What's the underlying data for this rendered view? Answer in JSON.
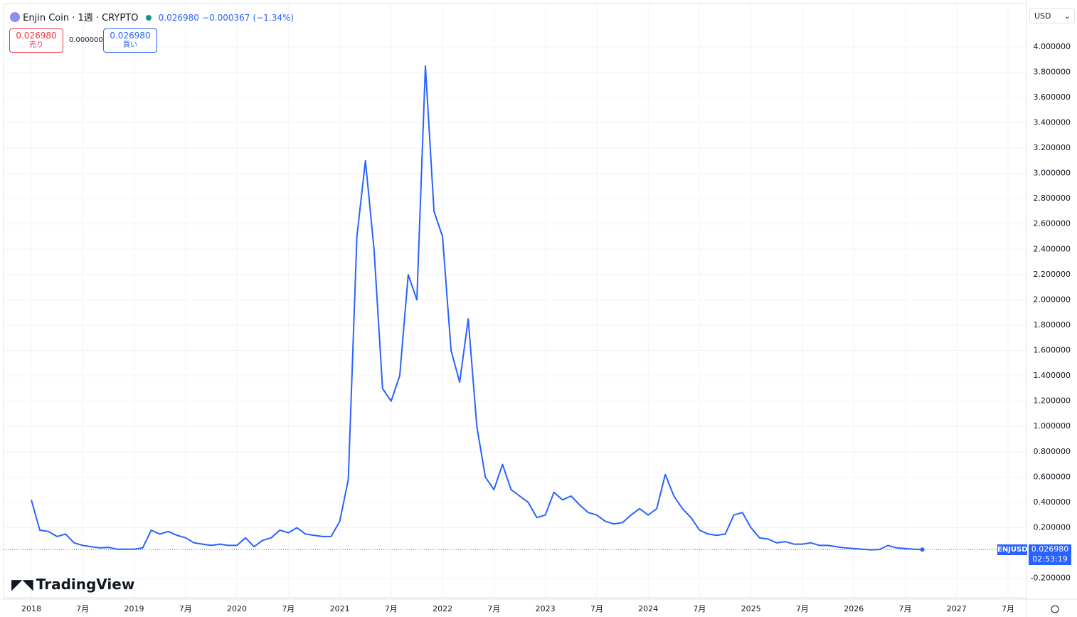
{
  "header": {
    "symbol": "Enjin Coin · 1週 · CRYPTO",
    "last": "0.026980",
    "change": "−0.000367",
    "change_pct": "(−1.34%)",
    "sell_price": "0.026980",
    "sell_label": "売り",
    "spread": "0.000000",
    "buy_price": "0.026980",
    "buy_label": "買い",
    "currency": "USD",
    "brand": "TradingView"
  },
  "price_tag": {
    "symbol": "ENJUSD",
    "price": "0.026980",
    "countdown": "02:53:19"
  },
  "chart_data": {
    "type": "line",
    "grid": true,
    "x": [
      "2018-01",
      "2018-02",
      "2018-03",
      "2018-04",
      "2018-05",
      "2018-06",
      "2018-07",
      "2018-08",
      "2018-09",
      "2018-10",
      "2018-11",
      "2018-12",
      "2019-01",
      "2019-02",
      "2019-03",
      "2019-04",
      "2019-05",
      "2019-06",
      "2019-07",
      "2019-08",
      "2019-09",
      "2019-10",
      "2019-11",
      "2019-12",
      "2020-01",
      "2020-02",
      "2020-03",
      "2020-04",
      "2020-05",
      "2020-06",
      "2020-07",
      "2020-08",
      "2020-09",
      "2020-10",
      "2020-11",
      "2020-12",
      "2021-01",
      "2021-02",
      "2021-03",
      "2021-04",
      "2021-05",
      "2021-06",
      "2021-07",
      "2021-08",
      "2021-09",
      "2021-10",
      "2021-11",
      "2021-12",
      "2022-01",
      "2022-02",
      "2022-03",
      "2022-04",
      "2022-05",
      "2022-06",
      "2022-07",
      "2022-08",
      "2022-09",
      "2022-10",
      "2022-11",
      "2022-12",
      "2023-01",
      "2023-02",
      "2023-03",
      "2023-04",
      "2023-05",
      "2023-06",
      "2023-07",
      "2023-08",
      "2023-09",
      "2023-10",
      "2023-11",
      "2023-12",
      "2024-01",
      "2024-02",
      "2024-03",
      "2024-04",
      "2024-05",
      "2024-06",
      "2024-07",
      "2024-08",
      "2024-09",
      "2024-10",
      "2024-11",
      "2024-12",
      "2025-01",
      "2025-02",
      "2025-03",
      "2025-04",
      "2025-05",
      "2025-06",
      "2025-07",
      "2025-08",
      "2025-09",
      "2025-10",
      "2025-11",
      "2025-12",
      "2026-01",
      "2026-02",
      "2026-03",
      "2026-04",
      "2026-05",
      "2026-06",
      "2026-07",
      "2026-08",
      "2026-09"
    ],
    "series": [
      {
        "name": "ENJUSD",
        "color": "#2962ff",
        "values": [
          0.42,
          0.18,
          0.17,
          0.13,
          0.15,
          0.08,
          0.06,
          0.05,
          0.04,
          0.045,
          0.03,
          0.03,
          0.03,
          0.04,
          0.18,
          0.15,
          0.17,
          0.14,
          0.12,
          0.08,
          0.07,
          0.06,
          0.07,
          0.06,
          0.06,
          0.12,
          0.05,
          0.1,
          0.12,
          0.18,
          0.16,
          0.2,
          0.15,
          0.14,
          0.13,
          0.13,
          0.25,
          0.58,
          2.5,
          3.1,
          2.4,
          1.3,
          1.2,
          1.4,
          2.2,
          2.0,
          3.85,
          2.7,
          2.5,
          1.6,
          1.35,
          1.85,
          1.0,
          0.6,
          0.5,
          0.7,
          0.5,
          0.45,
          0.4,
          0.28,
          0.3,
          0.48,
          0.42,
          0.45,
          0.38,
          0.32,
          0.3,
          0.25,
          0.23,
          0.24,
          0.3,
          0.35,
          0.3,
          0.35,
          0.62,
          0.45,
          0.35,
          0.28,
          0.18,
          0.15,
          0.14,
          0.15,
          0.3,
          0.32,
          0.2,
          0.12,
          0.11,
          0.08,
          0.09,
          0.07,
          0.07,
          0.08,
          0.06,
          0.06,
          0.05,
          0.04,
          0.035,
          0.03,
          0.025,
          0.028,
          0.06,
          0.04,
          0.035,
          0.03,
          0.02698
        ]
      }
    ],
    "ylim": [
      -0.354,
      4.342
    ],
    "yticks": [
      {
        "value": -0.2,
        "label": "-0.200000"
      },
      {
        "value": 0.2,
        "label": "0.200000"
      },
      {
        "value": 0.4,
        "label": "0.400000"
      },
      {
        "value": 0.6,
        "label": "0.600000"
      },
      {
        "value": 0.8,
        "label": "0.800000"
      },
      {
        "value": 1.0,
        "label": "1.000000"
      },
      {
        "value": 1.2,
        "label": "1.200000"
      },
      {
        "value": 1.4,
        "label": "1.400000"
      },
      {
        "value": 1.6,
        "label": "1.600000"
      },
      {
        "value": 1.8,
        "label": "1.800000"
      },
      {
        "value": 2.0,
        "label": "2.000000"
      },
      {
        "value": 2.2,
        "label": "2.200000"
      },
      {
        "value": 2.4,
        "label": "2.400000"
      },
      {
        "value": 2.6,
        "label": "2.600000"
      },
      {
        "value": 2.8,
        "label": "2.800000"
      },
      {
        "value": 3.0,
        "label": "3.000000"
      },
      {
        "value": 3.2,
        "label": "3.200000"
      },
      {
        "value": 3.4,
        "label": "3.400000"
      },
      {
        "value": 3.6,
        "label": "3.600000"
      },
      {
        "value": 3.8,
        "label": "3.800000"
      },
      {
        "value": 4.0,
        "label": "4.000000"
      }
    ],
    "xticks": [
      {
        "value": "2018-01",
        "label": "2018"
      },
      {
        "value": "2018-07",
        "label": "7月"
      },
      {
        "value": "2019-01",
        "label": "2019"
      },
      {
        "value": "2019-07",
        "label": "7月"
      },
      {
        "value": "2020-01",
        "label": "2020"
      },
      {
        "value": "2020-07",
        "label": "7月"
      },
      {
        "value": "2021-01",
        "label": "2021"
      },
      {
        "value": "2021-07",
        "label": "7月"
      },
      {
        "value": "2022-01",
        "label": "2022"
      },
      {
        "value": "2022-07",
        "label": "7月"
      },
      {
        "value": "2023-01",
        "label": "2023"
      },
      {
        "value": "2023-07",
        "label": "7月"
      },
      {
        "value": "2024-01",
        "label": "2024"
      },
      {
        "value": "2024-07",
        "label": "7月"
      },
      {
        "value": "2025-01",
        "label": "2025"
      },
      {
        "value": "2025-07",
        "label": "7月"
      },
      {
        "value": "2026-01",
        "label": "2026"
      },
      {
        "value": "2026-07",
        "label": "7月"
      },
      {
        "value": "2027-01",
        "label": "2027"
      },
      {
        "value": "2027-07",
        "label": "7月"
      }
    ]
  }
}
